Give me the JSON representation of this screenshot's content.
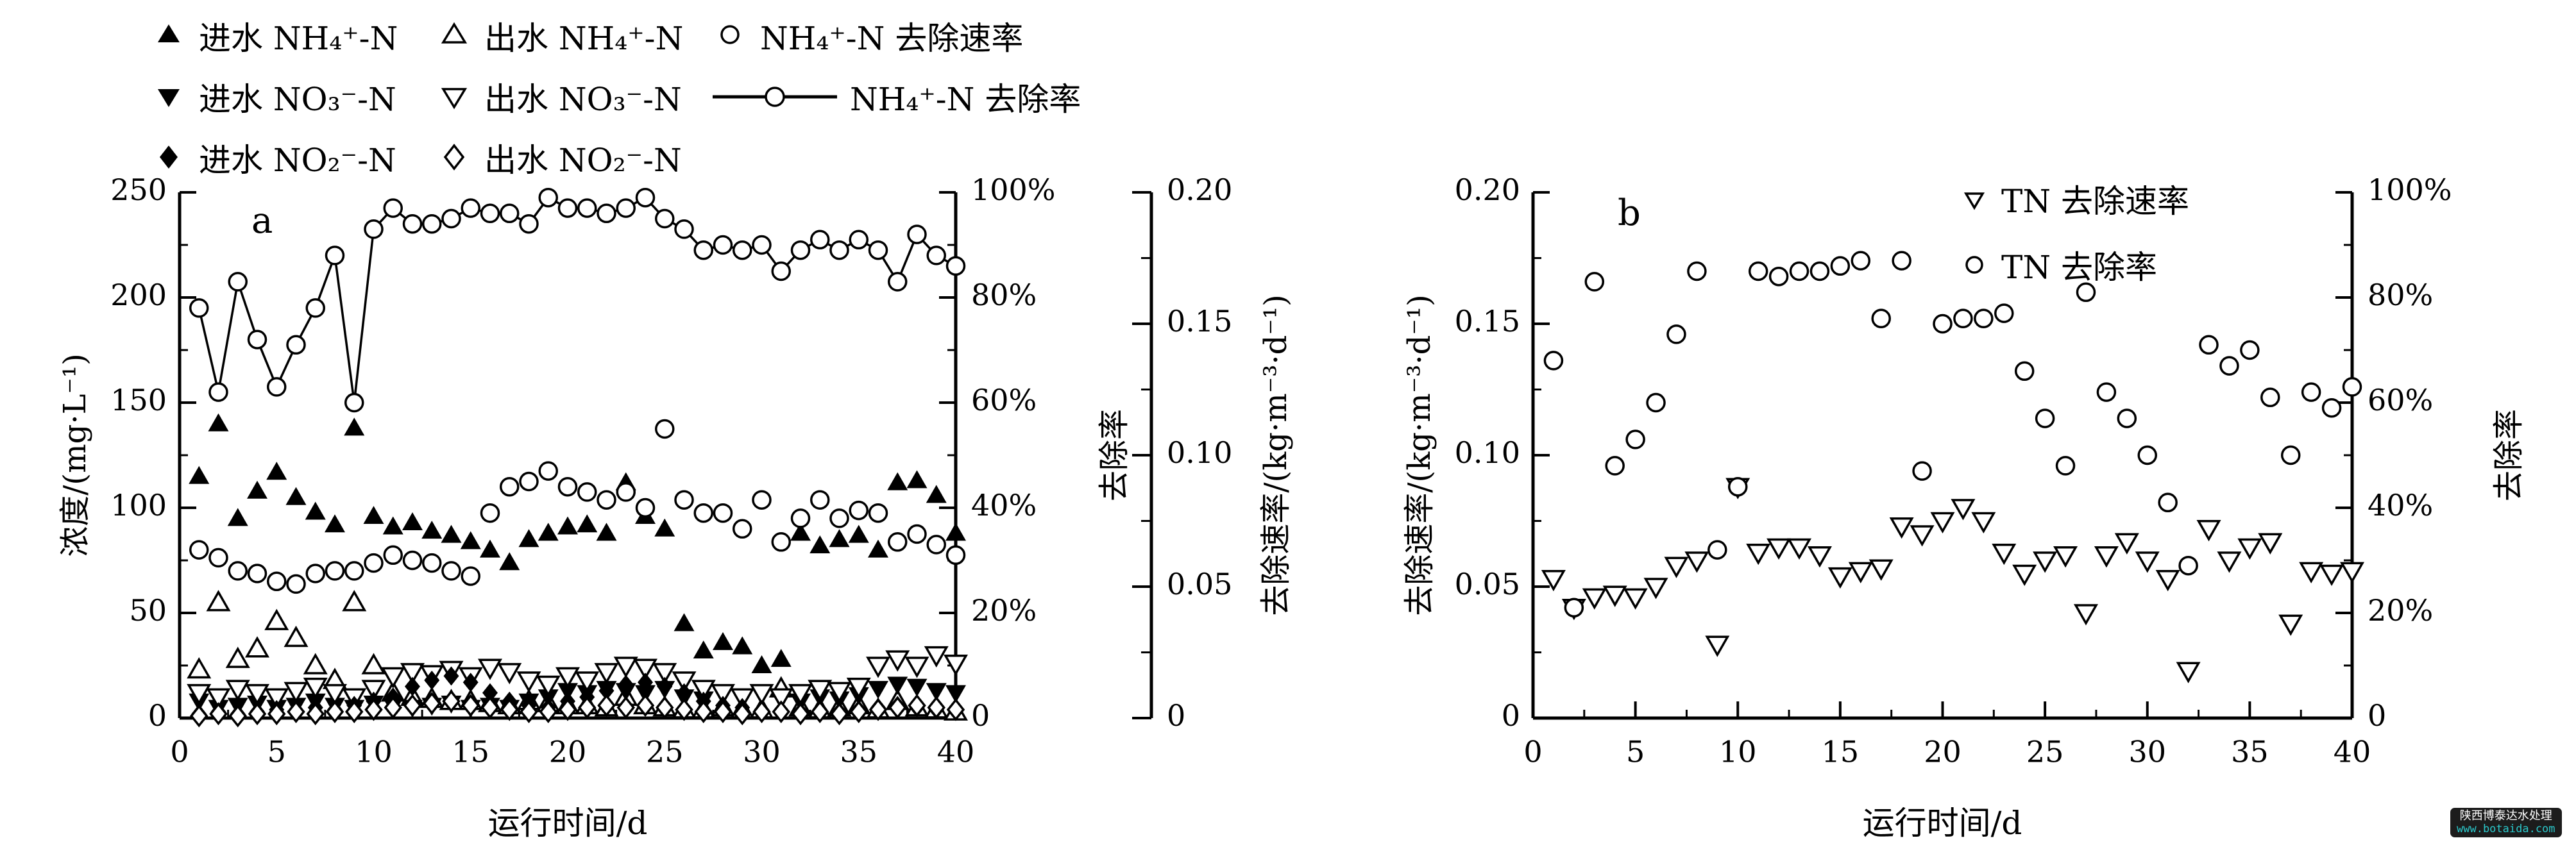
{
  "watermark": {
    "line1": "陕西博泰达水处理",
    "line2": "www.botaida.com",
    "box_color": "#1c1c1c",
    "url_color": "#2bc8cb"
  },
  "ink_color": "#000000",
  "legend_a": [
    {
      "marker": "triangle-up-filled",
      "label": "进水 NH₄⁺-N"
    },
    {
      "marker": "triangle-up-open",
      "label": "出水 NH₄⁺-N"
    },
    {
      "marker": "circle-open",
      "label": "NH₄⁺-N 去除速率"
    },
    {
      "marker": "triangle-down-filled",
      "label": "进水 NO₃⁻-N"
    },
    {
      "marker": "triangle-down-open",
      "label": "出水 NO₃⁻-N"
    },
    {
      "marker": "line-circle",
      "label": "NH₄⁺-N 去除率"
    },
    {
      "marker": "diamond-filled",
      "label": "进水 NO₂⁻-N"
    },
    {
      "marker": "diamond-open",
      "label": "出水 NO₂⁻-N"
    }
  ],
  "legend_b": [
    {
      "marker": "triangle-down-open",
      "label": "TN 去除速率"
    },
    {
      "marker": "circle-open",
      "label": "TN 去除率"
    }
  ],
  "chart_data": [
    {
      "id": "a",
      "type": "scatter",
      "panel_label": "a",
      "x_axis": {
        "label": "运行时间/d",
        "min": 0,
        "max": 40,
        "minor_step": 2.5,
        "tick_values": [
          0,
          5,
          10,
          15,
          20,
          25,
          30,
          35,
          40
        ],
        "tick_labels": [
          "0",
          "5",
          "10",
          "15",
          "20",
          "25",
          "30",
          "35",
          "40"
        ]
      },
      "y_axes": [
        {
          "id": "conc",
          "slot": "left",
          "label": "浓度/(mg·L⁻¹)",
          "min": 0,
          "max": 250,
          "minor_step": 25,
          "tick_values": [
            0,
            50,
            100,
            150,
            200,
            250
          ],
          "tick_labels": [
            "0",
            "50",
            "100",
            "150",
            "200",
            "250"
          ]
        },
        {
          "id": "pct",
          "slot": "right",
          "label": "去除率",
          "min": 0,
          "max": 100,
          "minor_step": 10,
          "tick_values": [
            0,
            20,
            40,
            60,
            80,
            100
          ],
          "tick_labels": [
            "0",
            "20%",
            "40%",
            "60%",
            "80%",
            "100%"
          ]
        },
        {
          "id": "rate",
          "slot": "float",
          "label": "去除速率/(kg·m⁻³·d⁻¹)",
          "min": 0,
          "max": 0.2,
          "minor_step": 0.025,
          "tick_values": [
            0,
            0.05,
            0.1,
            0.15,
            0.2
          ],
          "tick_labels": [
            "0",
            "0.05",
            "0.10",
            "0.15",
            "0.20"
          ]
        }
      ],
      "x": [
        1,
        2,
        3,
        4,
        5,
        6,
        7,
        8,
        9,
        10,
        11,
        12,
        13,
        14,
        15,
        16,
        17,
        18,
        19,
        20,
        21,
        22,
        23,
        24,
        25,
        26,
        27,
        28,
        29,
        30,
        31,
        32,
        33,
        34,
        35,
        36,
        37,
        38,
        39,
        40
      ],
      "series": [
        {
          "name": "进水 NH₄⁺-N",
          "marker": "triangle-up-filled",
          "axis": "conc",
          "connect": false,
          "values": [
            115,
            140,
            95,
            108,
            117,
            105,
            98,
            92,
            138,
            96,
            91,
            93,
            89,
            87,
            84,
            80,
            74,
            85,
            88,
            91,
            92,
            88,
            112,
            96,
            90,
            45,
            32,
            36,
            34,
            25,
            28,
            88,
            82,
            85,
            87,
            80,
            112,
            113,
            106,
            88
          ]
        },
        {
          "name": "出水 NH₄⁺-N",
          "marker": "triangle-up-open",
          "axis": "conc",
          "connect": false,
          "values": [
            23,
            55,
            28,
            33,
            46,
            38,
            25,
            18,
            55,
            25,
            12,
            10,
            9,
            8,
            8,
            7,
            6,
            8,
            7,
            6,
            6,
            5,
            10,
            6,
            5,
            4,
            4,
            5,
            4,
            4,
            14,
            5,
            4,
            5,
            6,
            4,
            8,
            5,
            4,
            3
          ]
        },
        {
          "name": "进水 NO₃⁻-N",
          "marker": "triangle-down-filled",
          "axis": "conc",
          "connect": false,
          "values": [
            8,
            5,
            6,
            7,
            5,
            6,
            8,
            6,
            5,
            7,
            6,
            5,
            6,
            7,
            5,
            6,
            5,
            8,
            10,
            13,
            12,
            14,
            13,
            12,
            14,
            10,
            9,
            11,
            10,
            12,
            9,
            8,
            10,
            9,
            11,
            14,
            16,
            15,
            13,
            12
          ]
        },
        {
          "name": "出水 NO₃⁻-N",
          "marker": "triangle-down-open",
          "axis": "conc",
          "connect": false,
          "values": [
            12,
            10,
            14,
            12,
            10,
            13,
            15,
            12,
            10,
            14,
            20,
            22,
            21,
            23,
            20,
            24,
            22,
            18,
            16,
            20,
            18,
            22,
            25,
            24,
            22,
            18,
            14,
            12,
            10,
            12,
            10,
            12,
            14,
            13,
            15,
            25,
            28,
            25,
            30,
            26
          ]
        },
        {
          "name": "进水 NO₂⁻-N",
          "marker": "diamond-filled",
          "axis": "conc",
          "connect": false,
          "values": [
            2,
            3,
            2,
            3,
            4,
            3,
            5,
            4,
            6,
            8,
            10,
            15,
            18,
            20,
            17,
            12,
            8,
            6,
            5,
            8,
            10,
            13,
            16,
            17,
            15,
            12,
            8,
            6,
            5,
            4,
            3,
            3,
            4,
            3,
            4,
            5,
            6,
            5,
            4,
            4
          ]
        },
        {
          "name": "出水 NO₂⁻-N",
          "marker": "diamond-open",
          "axis": "conc",
          "connect": false,
          "values": [
            1,
            2,
            1,
            2,
            2,
            3,
            2,
            3,
            3,
            4,
            5,
            6,
            7,
            8,
            6,
            5,
            4,
            3,
            3,
            4,
            5,
            6,
            5,
            6,
            5,
            4,
            3,
            3,
            2,
            3,
            3,
            2,
            3,
            2,
            3,
            4,
            5,
            6,
            5,
            4
          ]
        },
        {
          "name": "NH₄⁺-N 去除速率",
          "marker": "circle-open",
          "axis": "rate",
          "connect": false,
          "values": [
            0.064,
            0.061,
            0.056,
            0.055,
            0.052,
            0.051,
            0.055,
            0.056,
            0.056,
            0.059,
            0.062,
            0.06,
            0.059,
            0.056,
            0.054,
            0.078,
            0.088,
            0.09,
            0.094,
            0.088,
            0.086,
            0.083,
            0.086,
            0.08,
            0.11,
            0.083,
            0.078,
            0.078,
            0.072,
            0.083,
            0.067,
            0.076,
            0.083,
            0.076,
            0.079,
            0.078,
            0.067,
            0.07,
            0.066,
            0.062
          ]
        },
        {
          "name": "NH₄⁺-N 去除率",
          "marker": "circle-open",
          "axis": "pct",
          "connect": true,
          "values": [
            78,
            62,
            83,
            72,
            63,
            71,
            78,
            88,
            60,
            93,
            97,
            94,
            94,
            95,
            97,
            96,
            96,
            94,
            99,
            97,
            97,
            96,
            97,
            99,
            95,
            93,
            89,
            90,
            89,
            90,
            85,
            89,
            91,
            89,
            91,
            89,
            83,
            92,
            88,
            86
          ]
        }
      ]
    },
    {
      "id": "b",
      "type": "scatter",
      "panel_label": "b",
      "x_axis": {
        "label": "运行时间/d",
        "min": 0,
        "max": 40,
        "minor_step": 2.5,
        "tick_values": [
          0,
          5,
          10,
          15,
          20,
          25,
          30,
          35,
          40
        ],
        "tick_labels": [
          "0",
          "5",
          "10",
          "15",
          "20",
          "25",
          "30",
          "35",
          "40"
        ]
      },
      "y_axes": [
        {
          "id": "tnrate",
          "slot": "left",
          "label": "去除速率/(kg·m⁻³·d⁻¹)",
          "min": 0,
          "max": 0.2,
          "minor_step": 0.025,
          "tick_values": [
            0,
            0.05,
            0.1,
            0.15,
            0.2
          ],
          "tick_labels": [
            "0",
            "0.05",
            "0.10",
            "0.15",
            "0.20"
          ]
        },
        {
          "id": "tnpct",
          "slot": "right",
          "label": "去除率",
          "min": 0,
          "max": 100,
          "minor_step": 10,
          "tick_values": [
            0,
            20,
            40,
            60,
            80,
            100
          ],
          "tick_labels": [
            "0",
            "20%",
            "40%",
            "60%",
            "80%",
            "100%"
          ]
        }
      ],
      "x": [
        1,
        2,
        3,
        4,
        5,
        6,
        7,
        8,
        9,
        10,
        11,
        12,
        13,
        14,
        15,
        16,
        17,
        18,
        19,
        20,
        21,
        22,
        23,
        24,
        25,
        26,
        27,
        28,
        29,
        30,
        31,
        32,
        33,
        34,
        35,
        36,
        37,
        38,
        39,
        40
      ],
      "series": [
        {
          "name": "TN 去除速率",
          "marker": "triangle-down-open",
          "axis": "tnrate",
          "connect": false,
          "values": [
            0.053,
            0.042,
            0.046,
            0.047,
            0.046,
            0.05,
            0.058,
            0.06,
            0.028,
            0.088,
            0.063,
            0.065,
            0.065,
            0.062,
            0.054,
            0.056,
            0.057,
            0.073,
            0.07,
            0.075,
            0.08,
            0.075,
            0.063,
            0.055,
            0.06,
            0.062,
            0.04,
            0.062,
            0.067,
            0.06,
            0.053,
            0.018,
            0.072,
            0.06,
            0.065,
            0.067,
            0.036,
            0.056,
            0.055,
            0.056
          ]
        },
        {
          "name": "TN 去除率",
          "marker": "circle-open",
          "axis": "tnpct",
          "connect": false,
          "values": [
            68,
            21,
            83,
            48,
            53,
            60,
            73,
            85,
            32,
            44,
            85,
            84,
            85,
            85,
            86,
            87,
            76,
            87,
            47,
            75,
            76,
            76,
            77,
            66,
            57,
            48,
            81,
            62,
            57,
            50,
            41,
            29,
            71,
            67,
            70,
            61,
            50,
            62,
            59,
            63
          ]
        }
      ]
    }
  ]
}
